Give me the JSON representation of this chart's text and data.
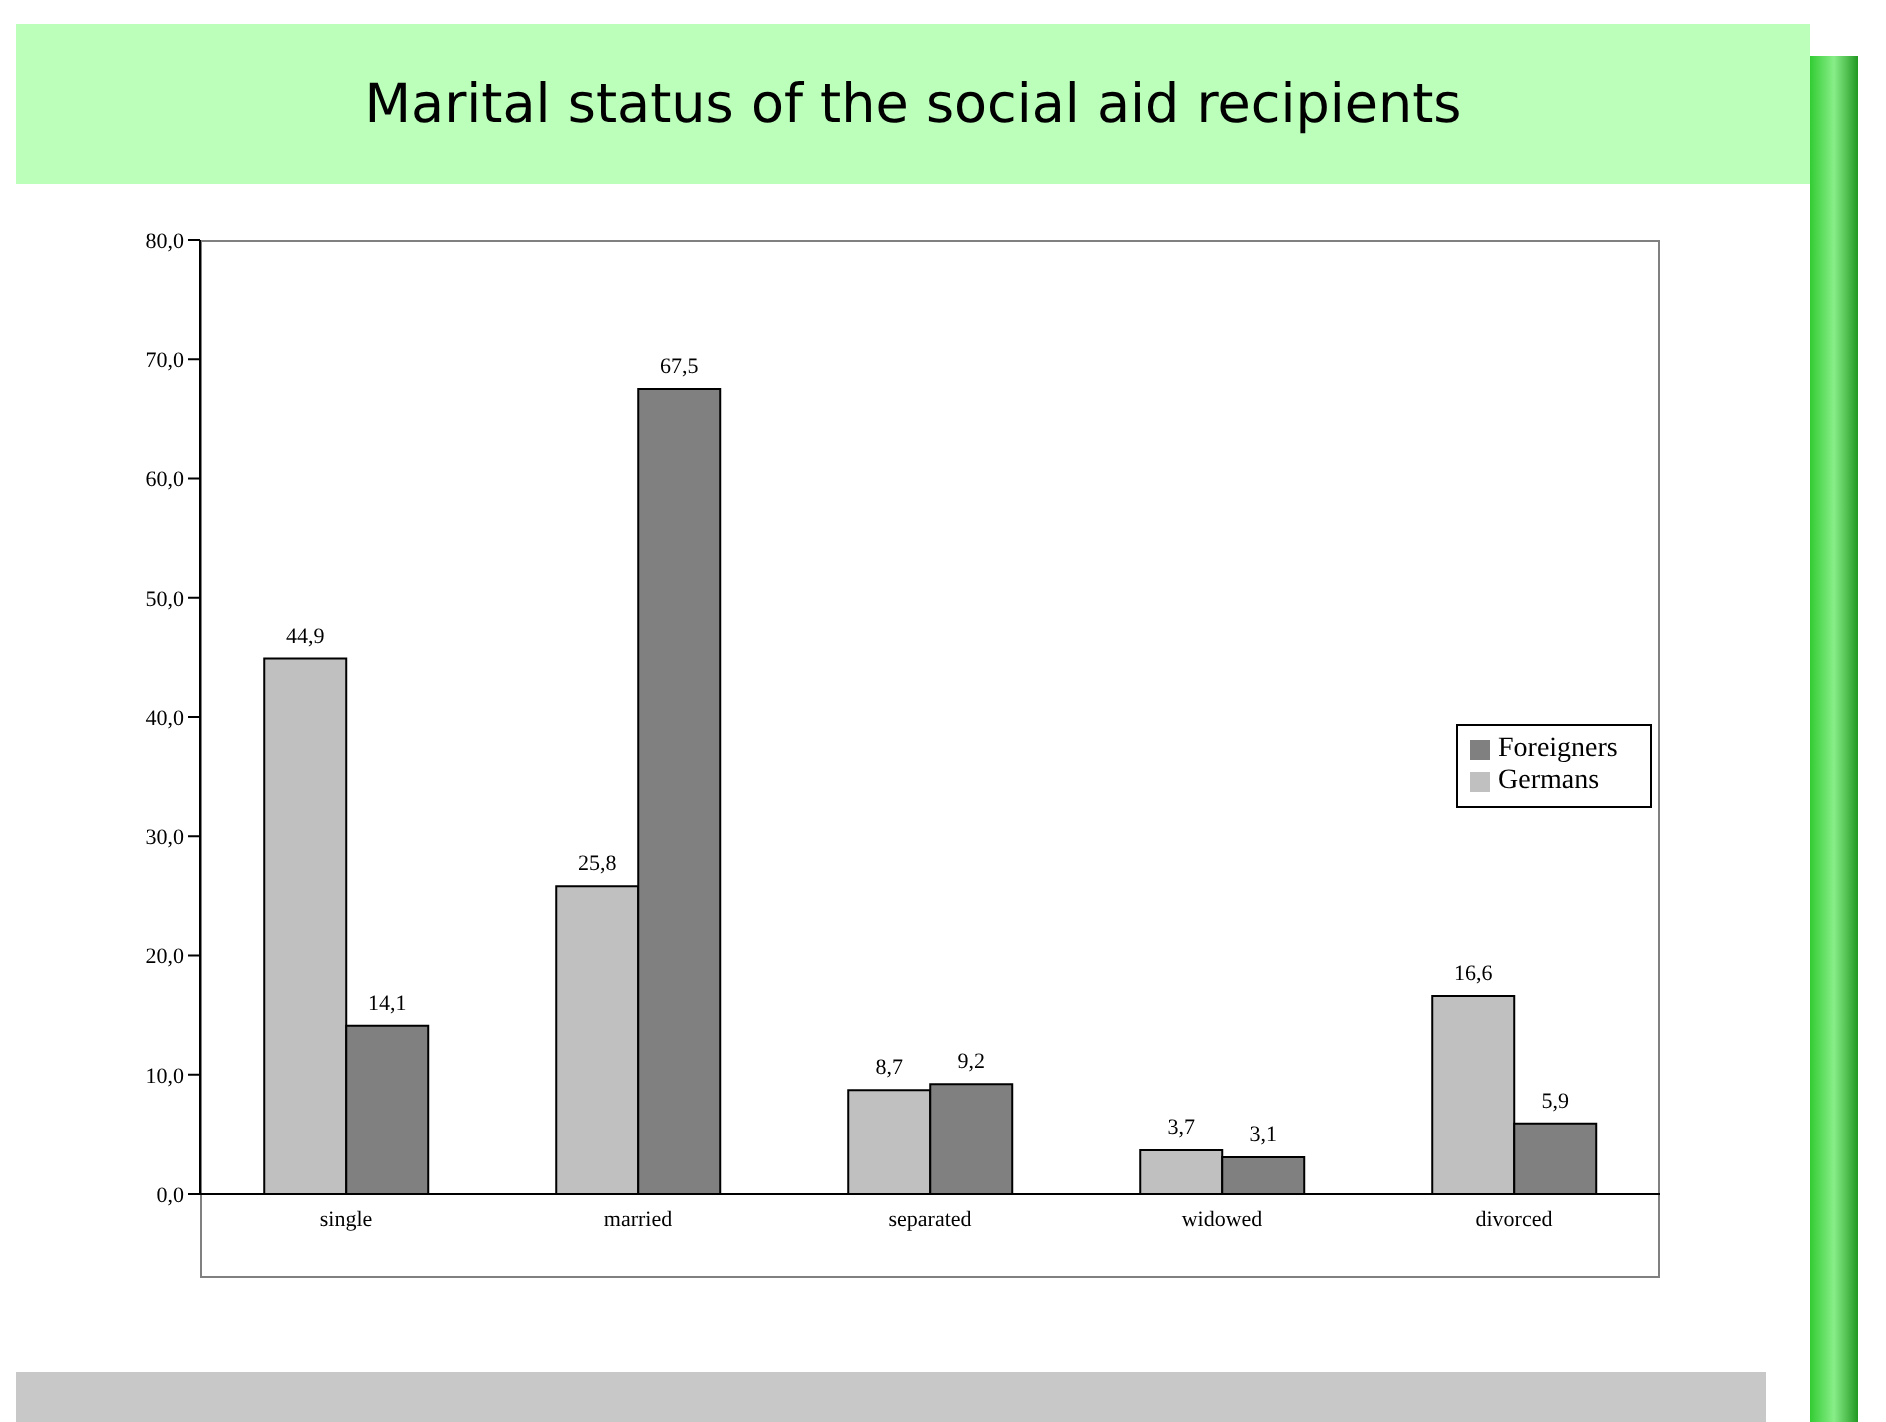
{
  "chart_data": {
    "type": "bar",
    "title": "Marital status of the social aid recipients",
    "categories": [
      "single",
      "married",
      "separated",
      "widowed",
      "divorced"
    ],
    "series": [
      {
        "name": "Germans",
        "color": "#c0c0c0",
        "values": [
          44.9,
          25.8,
          8.7,
          3.7,
          16.6
        ],
        "value_labels": [
          "44,9",
          "25,8",
          "8,7",
          "3,7",
          "16,6"
        ]
      },
      {
        "name": "Foreigners",
        "color": "#808080",
        "values": [
          14.1,
          67.5,
          9.2,
          3.1,
          5.9
        ],
        "value_labels": [
          "14,1",
          "67,5",
          "9,2",
          "3,1",
          "5,9"
        ]
      }
    ],
    "ylim": [
      0,
      80
    ],
    "yticks": [
      {
        "value": 0,
        "label": "0,0"
      },
      {
        "value": 10,
        "label": "10,0"
      },
      {
        "value": 20,
        "label": "20,0"
      },
      {
        "value": 30,
        "label": "30,0"
      },
      {
        "value": 40,
        "label": "40,0"
      },
      {
        "value": 50,
        "label": "50,0"
      },
      {
        "value": 60,
        "label": "60,0"
      },
      {
        "value": 70,
        "label": "70,0"
      },
      {
        "value": 80,
        "label": "80,0"
      }
    ],
    "legend": "right"
  }
}
